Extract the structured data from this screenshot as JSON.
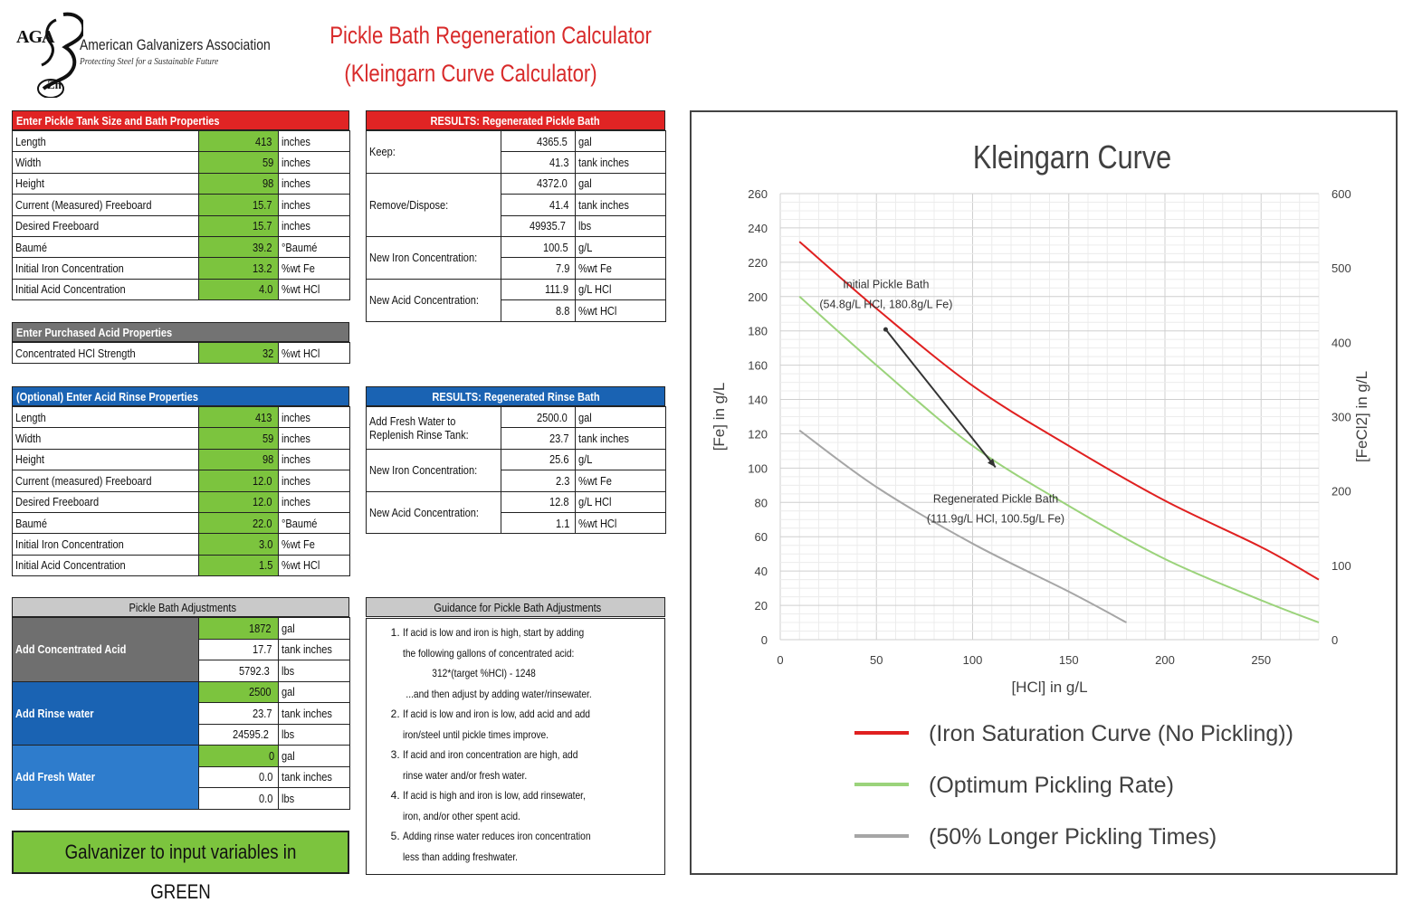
{
  "logo": {
    "mark": "AGA",
    "element": "Zn",
    "name": "American Galvanizers Association",
    "tagline": "Protecting Steel for a Sustainable Future"
  },
  "title": {
    "line1": "Pickle Bath Regeneration Calculator",
    "line2": "(Kleingarn Curve Calculator)"
  },
  "tank": {
    "header": "Enter Pickle Tank Size and Bath Properties",
    "rows": [
      {
        "label": "Length",
        "value": "413",
        "unit": "inches"
      },
      {
        "label": "Width",
        "value": "59",
        "unit": "inches"
      },
      {
        "label": "Height",
        "value": "98",
        "unit": "inches"
      },
      {
        "label": "Current (Measured) Freeboard",
        "value": "15.7",
        "unit": "inches"
      },
      {
        "label": "Desired Freeboard",
        "value": "15.7",
        "unit": "inches"
      },
      {
        "label": "Baumé",
        "value": "39.2",
        "unit": "°Baumé"
      },
      {
        "label": "Initial Iron Concentration",
        "value": "13.2",
        "unit": "%wt Fe"
      },
      {
        "label": "Initial Acid Concentration",
        "value": "4.0",
        "unit": "%wt HCl"
      }
    ]
  },
  "acid": {
    "header": "Enter Purchased Acid Properties",
    "rows": [
      {
        "label": "Concentrated HCl Strength",
        "value": "32",
        "unit": "%wt HCl"
      }
    ]
  },
  "rinse": {
    "header": "(Optional) Enter Acid Rinse Properties",
    "rows": [
      {
        "label": "Length",
        "value": "413",
        "unit": "inches"
      },
      {
        "label": "Width",
        "value": "59",
        "unit": "inches"
      },
      {
        "label": "Height",
        "value": "98",
        "unit": "inches"
      },
      {
        "label": "Current (measured) Freeboard",
        "value": "12.0",
        "unit": "inches"
      },
      {
        "label": "Desired Freeboard",
        "value": "12.0",
        "unit": "inches"
      },
      {
        "label": "Baumé",
        "value": "22.0",
        "unit": "°Baumé"
      },
      {
        "label": "Initial Iron Concentration",
        "value": "3.0",
        "unit": "%wt Fe"
      },
      {
        "label": "Initial Acid Concentration",
        "value": "1.5",
        "unit": "%wt HCl"
      }
    ]
  },
  "results_pickle": {
    "header": "RESULTS:  Regenerated Pickle Bath",
    "groups": [
      {
        "label": "Keep:",
        "rows": [
          {
            "value": "4365.5",
            "unit": "gal"
          },
          {
            "value": "41.3",
            "unit": "tank inches"
          }
        ]
      },
      {
        "label": "Remove/Dispose:",
        "rows": [
          {
            "value": "4372.0",
            "unit": "gal"
          },
          {
            "value": "41.4",
            "unit": "tank inches"
          },
          {
            "value": "49935.7",
            "unit": "lbs"
          }
        ]
      },
      {
        "label": "New Iron Concentration:",
        "rows": [
          {
            "value": "100.5",
            "unit": "g/L"
          },
          {
            "value": "7.9",
            "unit": "%wt Fe"
          }
        ]
      },
      {
        "label": "New Acid Concentration:",
        "rows": [
          {
            "value": "111.9",
            "unit": "g/L HCl"
          },
          {
            "value": "8.8",
            "unit": "%wt HCl"
          }
        ]
      }
    ]
  },
  "results_rinse": {
    "header": "RESULTS:  Regenerated Rinse Bath",
    "groups": [
      {
        "label": "Add Fresh Water to",
        "label2": "Replenish Rinse Tank:",
        "rows": [
          {
            "value": "2500.0",
            "unit": "gal"
          },
          {
            "value": "23.7",
            "unit": "tank inches"
          }
        ]
      },
      {
        "label": "New Iron Concentration:",
        "rows": [
          {
            "value": "25.6",
            "unit": "g/L"
          },
          {
            "value": "2.3",
            "unit": "%wt Fe"
          }
        ]
      },
      {
        "label": "New Acid Concentration:",
        "rows": [
          {
            "value": "12.8",
            "unit": "g/L HCl"
          },
          {
            "value": "1.1",
            "unit": "%wt HCl"
          }
        ]
      }
    ]
  },
  "adjustments": {
    "header": "Pickle Bath Adjustments",
    "groups": [
      {
        "label": "Add Concentrated Acid",
        "rows": [
          {
            "value": "1872",
            "unit": "gal"
          },
          {
            "value": "17.7",
            "unit": "tank inches"
          },
          {
            "value": "5792.3",
            "unit": "lbs"
          }
        ]
      },
      {
        "label": "Add Rinse water",
        "rows": [
          {
            "value": "2500",
            "unit": "gal"
          },
          {
            "value": "23.7",
            "unit": "tank inches"
          },
          {
            "value": "24595.2",
            "unit": "lbs"
          }
        ]
      },
      {
        "label": "Add Fresh Water",
        "rows": [
          {
            "value": "0",
            "unit": "gal"
          },
          {
            "value": "0.0",
            "unit": "tank inches"
          },
          {
            "value": "0.0",
            "unit": "lbs"
          }
        ]
      }
    ]
  },
  "guidance": {
    "header": "Guidance for Pickle Bath Adjustments",
    "items": [
      [
        "If acid is low and iron is high, start by adding",
        "the following gallons of concentrated acid:",
        "312*(target %HCl) - 1248",
        "...and then adjust by adding water/rinsewater."
      ],
      [
        "If acid is low and iron is low, add acid and add",
        "iron/steel until pickle times improve."
      ],
      [
        "If acid and iron concentration are high, add",
        "rinse water and/or fresh water."
      ],
      [
        "If acid is high and iron is low, add rinsewater,",
        "iron, and/or other spent acid."
      ],
      [
        "Adding rinse water reduces iron concentration",
        "less than adding freshwater."
      ]
    ]
  },
  "note": "Galvanizer to input variables in GREEN",
  "chart_data": {
    "type": "line",
    "title": "Kleingarn Curve",
    "xlabel": "[HCl] in g/L",
    "ylabel": "[Fe] in g/L",
    "y2label": "[FeCl2] in g/L",
    "xlim": [
      0,
      280
    ],
    "ylim": [
      0,
      260
    ],
    "y2lim": [
      0,
      600
    ],
    "xticks": [
      0,
      50,
      100,
      150,
      200,
      250
    ],
    "yticks": [
      0,
      20,
      40,
      60,
      80,
      100,
      120,
      140,
      160,
      180,
      200,
      220,
      240,
      260
    ],
    "y2ticks": [
      0,
      100,
      200,
      300,
      400,
      500,
      600
    ],
    "series": [
      {
        "name": "(Iron Saturation Curve (No Pickling))",
        "color": "#e02020",
        "x": [
          10,
          50,
          100,
          150,
          200,
          250,
          280
        ],
        "y": [
          232,
          193,
          148,
          113,
          81,
          54,
          35
        ]
      },
      {
        "name": "(Optimum Pickling Rate)",
        "color": "#9bd37b",
        "x": [
          10,
          50,
          100,
          150,
          200,
          250,
          280
        ],
        "y": [
          200,
          160,
          113,
          78,
          47,
          23,
          10
        ]
      },
      {
        "name": "(50% Longer Pickling Times)",
        "color": "#a6a6a6",
        "x": [
          10,
          50,
          100,
          150,
          180
        ],
        "y": [
          122,
          89,
          56,
          28,
          10
        ]
      }
    ],
    "arrow": {
      "from": [
        54.8,
        180.8
      ],
      "to": [
        111.9,
        100.5
      ],
      "color": "#333333"
    },
    "annotations": [
      {
        "line1": "Initial Pickle Bath",
        "line2": "(54.8g/L HCl, 180.8g/L Fe)",
        "x": 55,
        "y": 205
      },
      {
        "line1": "Regenerated Pickle Bath",
        "line2": "(111.9g/L HCl, 100.5g/L Fe)",
        "x": 112,
        "y": 80
      }
    ],
    "legend_position": "bottom",
    "grid": true
  }
}
